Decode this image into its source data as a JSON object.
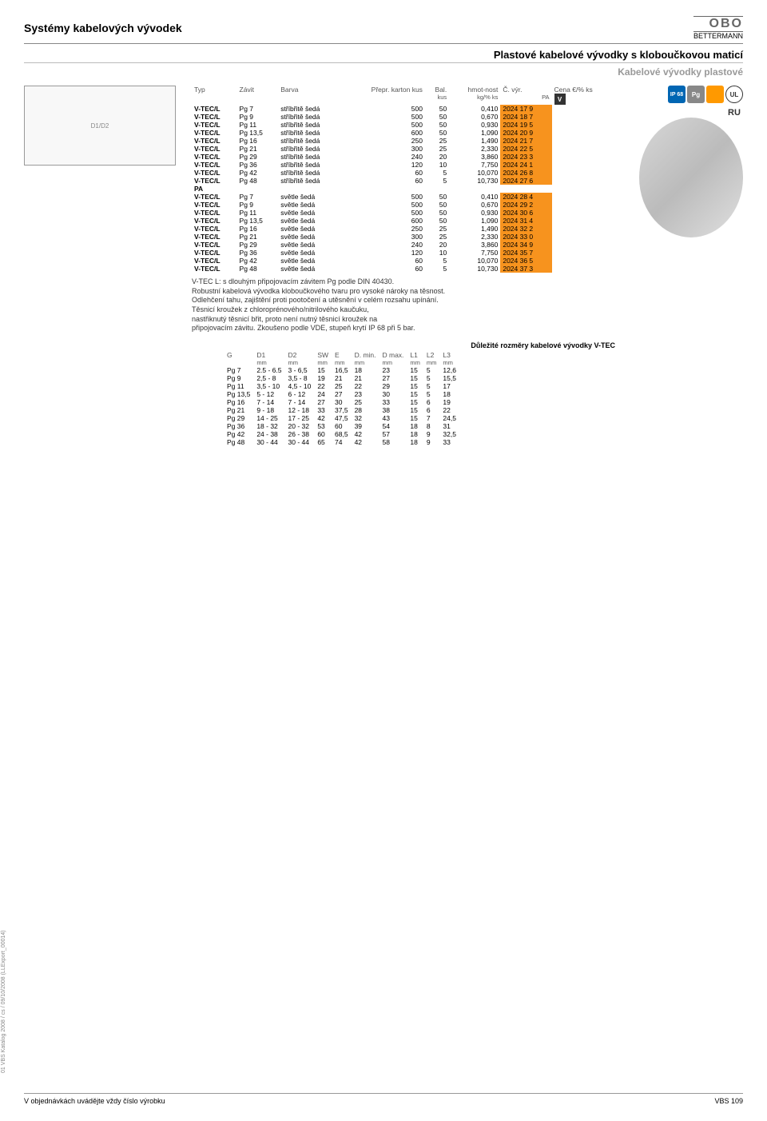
{
  "header": {
    "title": "Systémy kabelových vývodek",
    "logo_main": "OBO",
    "logo_sub": "BETTERMANN"
  },
  "subheader": "Plastové kabelové vývodky s kloboučkovou maticí",
  "subheader2": "Kabelové vývodky plastové",
  "diagram_label": "D1/D2",
  "icons": {
    "ip": "IP 68",
    "pg": "Pg",
    "ul": "UL",
    "ru": "RU"
  },
  "table_head": {
    "typ": "Typ",
    "zavit": "Závit",
    "barva": "Barva",
    "prepr": "Přepr. karton kus",
    "bal": "Bal.",
    "bal_unit": "kus",
    "hmot": "hmot-nost",
    "hmot_unit": "kg/% ks",
    "cvyr": "Č. výr.",
    "cena": "Cena €/% ks",
    "mat": "PA",
    "v": "V"
  },
  "rows_silver": [
    {
      "typ": "V-TEC/L",
      "zavit": "Pg 7",
      "barva": "stříbřitě šedá",
      "prepr": "500",
      "bal": "50",
      "hmot": "0,410",
      "cvyr": "2024 17 9"
    },
    {
      "typ": "V-TEC/L",
      "zavit": "Pg 9",
      "barva": "stříbřitě šedá",
      "prepr": "500",
      "bal": "50",
      "hmot": "0,670",
      "cvyr": "2024 18 7"
    },
    {
      "typ": "V-TEC/L",
      "zavit": "Pg 11",
      "barva": "stříbřitě šedá",
      "prepr": "500",
      "bal": "50",
      "hmot": "0,930",
      "cvyr": "2024 19 5"
    },
    {
      "typ": "V-TEC/L",
      "zavit": "Pg 13,5",
      "barva": "stříbřitě šedá",
      "prepr": "600",
      "bal": "50",
      "hmot": "1,090",
      "cvyr": "2024 20 9"
    },
    {
      "typ": "V-TEC/L",
      "zavit": "Pg 16",
      "barva": "stříbřitě šedá",
      "prepr": "250",
      "bal": "25",
      "hmot": "1,490",
      "cvyr": "2024 21 7"
    },
    {
      "typ": "V-TEC/L",
      "zavit": "Pg 21",
      "barva": "stříbřitě šedá",
      "prepr": "300",
      "bal": "25",
      "hmot": "2,330",
      "cvyr": "2024 22 5"
    },
    {
      "typ": "V-TEC/L",
      "zavit": "Pg 29",
      "barva": "stříbřitě šedá",
      "prepr": "240",
      "bal": "20",
      "hmot": "3,860",
      "cvyr": "2024 23 3"
    },
    {
      "typ": "V-TEC/L",
      "zavit": "Pg 36",
      "barva": "stříbřitě šedá",
      "prepr": "120",
      "bal": "10",
      "hmot": "7,750",
      "cvyr": "2024 24 1"
    },
    {
      "typ": "V-TEC/L",
      "zavit": "Pg 42",
      "barva": "stříbřitě šedá",
      "prepr": "60",
      "bal": "5",
      "hmot": "10,070",
      "cvyr": "2024 26 8"
    },
    {
      "typ": "V-TEC/L",
      "zavit": "Pg 48",
      "barva": "stříbřitě šedá",
      "prepr": "60",
      "bal": "5",
      "hmot": "10,730",
      "cvyr": "2024 27 6"
    }
  ],
  "rows_light": [
    {
      "typ": "V-TEC/L",
      "zavit": "Pg 7",
      "barva": "světle šedá",
      "prepr": "500",
      "bal": "50",
      "hmot": "0,410",
      "cvyr": "2024 28 4"
    },
    {
      "typ": "V-TEC/L",
      "zavit": "Pg 9",
      "barva": "světle šedá",
      "prepr": "500",
      "bal": "50",
      "hmot": "0,670",
      "cvyr": "2024 29 2"
    },
    {
      "typ": "V-TEC/L",
      "zavit": "Pg 11",
      "barva": "světle šedá",
      "prepr": "500",
      "bal": "50",
      "hmot": "0,930",
      "cvyr": "2024 30 6"
    },
    {
      "typ": "V-TEC/L",
      "zavit": "Pg 13,5",
      "barva": "světle šedá",
      "prepr": "600",
      "bal": "50",
      "hmot": "1,090",
      "cvyr": "2024 31 4"
    },
    {
      "typ": "V-TEC/L",
      "zavit": "Pg 16",
      "barva": "světle šedá",
      "prepr": "250",
      "bal": "25",
      "hmot": "1,490",
      "cvyr": "2024 32 2"
    },
    {
      "typ": "V-TEC/L",
      "zavit": "Pg 21",
      "barva": "světle šedá",
      "prepr": "300",
      "bal": "25",
      "hmot": "2,330",
      "cvyr": "2024 33 0"
    },
    {
      "typ": "V-TEC/L",
      "zavit": "Pg 29",
      "barva": "světle šedá",
      "prepr": "240",
      "bal": "20",
      "hmot": "3,860",
      "cvyr": "2024 34 9"
    },
    {
      "typ": "V-TEC/L",
      "zavit": "Pg 36",
      "barva": "světle šedá",
      "prepr": "120",
      "bal": "10",
      "hmot": "7,750",
      "cvyr": "2024 35 7"
    },
    {
      "typ": "V-TEC/L",
      "zavit": "Pg 42",
      "barva": "světle šedá",
      "prepr": "60",
      "bal": "5",
      "hmot": "10,070",
      "cvyr": "2024 36 5"
    },
    {
      "typ": "V-TEC/L",
      "zavit": "Pg 48",
      "barva": "světle šedá",
      "prepr": "60",
      "bal": "5",
      "hmot": "10,730",
      "cvyr": "2024 37 3"
    }
  ],
  "mid_pa": "PA",
  "description": [
    "V-TEC L: s dlouhým připojovacím závitem Pg podle DIN 40430.",
    "Robustní kabelová vývodka kloboučkového tvaru pro vysoké nároky na těsnost.",
    "Odlehčení tahu, zajištění proti pootočení a utěsnění v celém rozsahu upínání.",
    "Těsnicí kroužek z chloroprénového/nitrilového kaučuku,",
    "nastřiknutý těsnicí břit, proto není nutný těsnicí kroužek na",
    "připojovacím závitu. Zkoušeno podle VDE, stupeň krytí IP 68 při 5 bar."
  ],
  "dims_title": "Důležité rozměry kabelové vývodky V-TEC",
  "dims_head": [
    "G",
    "D1",
    "D2",
    "SW",
    "E",
    "D. min.",
    "D max.",
    "L1",
    "L2",
    "L3"
  ],
  "dims_unit": "mm",
  "dims_rows": [
    [
      "Pg 7",
      "2.5 - 6.5",
      "3 - 6,5",
      "15",
      "16,5",
      "18",
      "23",
      "15",
      "5",
      "12,6"
    ],
    [
      "Pg 9",
      "2,5 - 8",
      "3,5 - 8",
      "19",
      "21",
      "21",
      "27",
      "15",
      "5",
      "15,5"
    ],
    [
      "Pg 11",
      "3,5 - 10",
      "4,5 - 10",
      "22",
      "25",
      "22",
      "29",
      "15",
      "5",
      "17"
    ],
    [
      "Pg 13,5",
      "5 - 12",
      "6 - 12",
      "24",
      "27",
      "23",
      "30",
      "15",
      "5",
      "18"
    ],
    [
      "Pg 16",
      "7 - 14",
      "7 - 14",
      "27",
      "30",
      "25",
      "33",
      "15",
      "6",
      "19"
    ],
    [
      "Pg 21",
      "9 - 18",
      "12 - 18",
      "33",
      "37,5",
      "28",
      "38",
      "15",
      "6",
      "22"
    ],
    [
      "Pg 29",
      "14 - 25",
      "17 - 25",
      "42",
      "47,5",
      "32",
      "43",
      "15",
      "7",
      "24,5"
    ],
    [
      "Pg 36",
      "18 - 32",
      "20 - 32",
      "53",
      "60",
      "39",
      "54",
      "18",
      "8",
      "31"
    ],
    [
      "Pg 42",
      "24 - 38",
      "26 - 38",
      "60",
      "68,5",
      "42",
      "57",
      "18",
      "9",
      "32,5"
    ],
    [
      "Pg 48",
      "30 - 44",
      "30 - 44",
      "65",
      "74",
      "42",
      "58",
      "18",
      "9",
      "33"
    ]
  ],
  "side_text": "01 VBS Katalog 2008 / cs / 09/10/2008 (LLExport_00014)",
  "footer": {
    "left": "V objednávkách uvádějte vždy číslo výrobku",
    "right": "VBS 109"
  },
  "colors": {
    "partno_bg": "#f7931e",
    "header_border": "#888888",
    "text": "#333333"
  }
}
